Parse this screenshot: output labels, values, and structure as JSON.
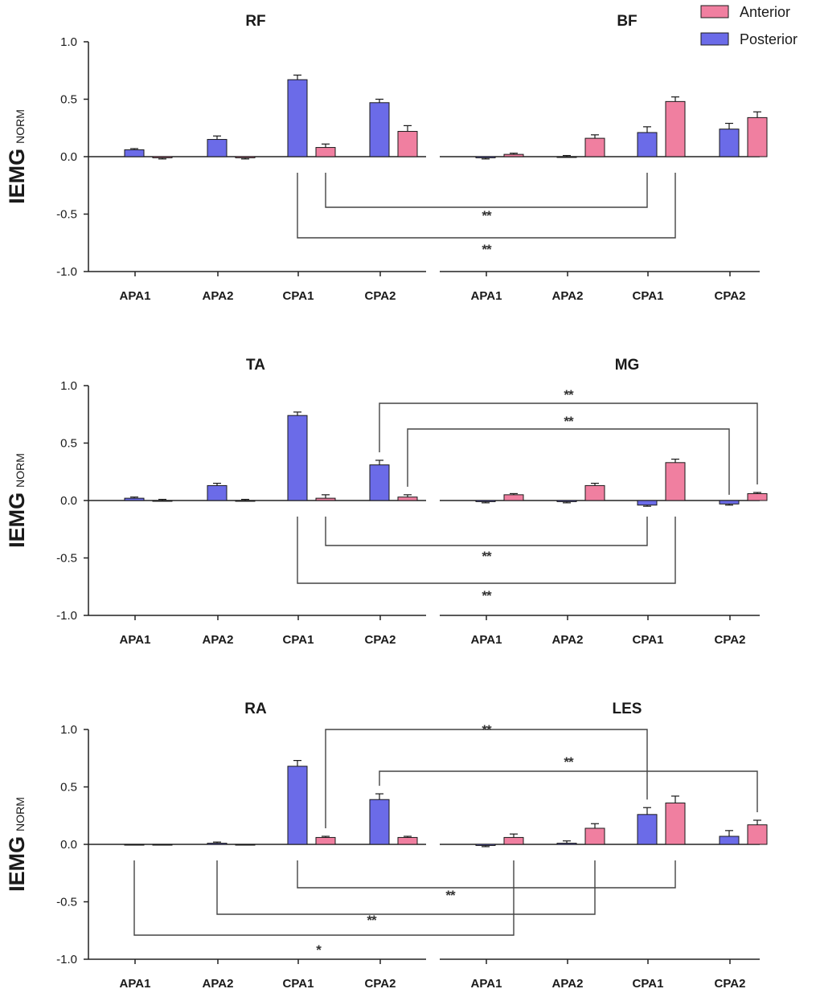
{
  "legend": [
    {
      "name": "Anterior",
      "color": "#f07fa0"
    },
    {
      "name": "Posterior",
      "color": "#6b6be8"
    }
  ],
  "colors": {
    "axis": "#222222",
    "bar_stroke": "#1a1a1a",
    "bracket": "#444444"
  },
  "chart_data": [
    {
      "type": "bar",
      "row": 1,
      "ylabel": "IEMG",
      "ylabel_sub": "NORM",
      "ylim": [
        -1.0,
        1.0
      ],
      "yticks": [
        "1.0",
        "0.5",
        "0.0",
        "-0.5",
        "-1.0"
      ],
      "panels": [
        {
          "title": "RF",
          "categories": [
            "APA1",
            "APA2",
            "CPA1",
            "CPA2"
          ],
          "series": [
            {
              "name": "Posterior",
              "values": [
                0.06,
                0.15,
                0.67,
                0.47
              ],
              "errors": [
                0.01,
                0.03,
                0.04,
                0.03
              ]
            },
            {
              "name": "Anterior",
              "values": [
                -0.01,
                -0.01,
                0.08,
                0.22
              ],
              "errors": [
                0.01,
                0.01,
                0.03,
                0.05
              ]
            }
          ]
        },
        {
          "title": "BF",
          "categories": [
            "APA1",
            "APA2",
            "CPA1",
            "CPA2"
          ],
          "series": [
            {
              "name": "Posterior",
              "values": [
                -0.01,
                0.0,
                0.21,
                0.24
              ],
              "errors": [
                0.01,
                0.01,
                0.05,
                0.05
              ]
            },
            {
              "name": "Anterior",
              "values": [
                0.02,
                0.16,
                0.48,
                0.34
              ],
              "errors": [
                0.01,
                0.03,
                0.04,
                0.05
              ]
            }
          ]
        }
      ],
      "significance": [
        {
          "label": "**",
          "from": "RF CPA1 Anterior",
          "to": "BF CPA1 Posterior"
        },
        {
          "label": "**",
          "from": "RF CPA1 Posterior",
          "to": "BF CPA1 Anterior"
        }
      ]
    },
    {
      "type": "bar",
      "row": 2,
      "ylabel": "IEMG",
      "ylabel_sub": "NORM",
      "ylim": [
        -1.0,
        1.0
      ],
      "yticks": [
        "1.0",
        "0.5",
        "0.0",
        "-0.5",
        "-1.0"
      ],
      "panels": [
        {
          "title": "TA",
          "categories": [
            "APA1",
            "APA2",
            "CPA1",
            "CPA2"
          ],
          "series": [
            {
              "name": "Posterior",
              "values": [
                0.02,
                0.13,
                0.74,
                0.31
              ],
              "errors": [
                0.01,
                0.02,
                0.03,
                0.04
              ]
            },
            {
              "name": "Anterior",
              "values": [
                0.0,
                0.0,
                0.02,
                0.03
              ],
              "errors": [
                0.01,
                0.01,
                0.03,
                0.02
              ]
            }
          ]
        },
        {
          "title": "MG",
          "categories": [
            "APA1",
            "APA2",
            "CPA1",
            "CPA2"
          ],
          "series": [
            {
              "name": "Posterior",
              "values": [
                -0.01,
                -0.01,
                -0.04,
                -0.03
              ],
              "errors": [
                0.01,
                0.01,
                0.01,
                0.01
              ]
            },
            {
              "name": "Anterior",
              "values": [
                0.05,
                0.13,
                0.33,
                0.06
              ],
              "errors": [
                0.01,
                0.02,
                0.03,
                0.01
              ]
            }
          ]
        }
      ],
      "significance": [
        {
          "label": "**",
          "from": "TA CPA2 Posterior",
          "to": "MG CPA2 Anterior"
        },
        {
          "label": "**",
          "from": "TA CPA2 Anterior",
          "to": "MG CPA2 Posterior"
        },
        {
          "label": "**",
          "from": "TA CPA1 Anterior",
          "to": "MG CPA1 Posterior"
        },
        {
          "label": "**",
          "from": "TA CPA1 Posterior",
          "to": "MG CPA1 Anterior"
        }
      ]
    },
    {
      "type": "bar",
      "row": 3,
      "ylabel": "IEMG",
      "ylabel_sub": "NORM",
      "ylim": [
        -1.0,
        1.0
      ],
      "yticks": [
        "1.0",
        "0.5",
        "0.0",
        "-0.5",
        "-1.0"
      ],
      "panels": [
        {
          "title": "RA",
          "categories": [
            "APA1",
            "APA2",
            "CPA1",
            "CPA2"
          ],
          "series": [
            {
              "name": "Posterior",
              "values": [
                0.0,
                0.01,
                0.68,
                0.39
              ],
              "errors": [
                0.0,
                0.01,
                0.05,
                0.05
              ]
            },
            {
              "name": "Anterior",
              "values": [
                0.0,
                0.0,
                0.06,
                0.06
              ],
              "errors": [
                0.0,
                0.0,
                0.01,
                0.01
              ]
            }
          ]
        },
        {
          "title": "LES",
          "categories": [
            "APA1",
            "APA2",
            "CPA1",
            "CPA2"
          ],
          "series": [
            {
              "name": "Posterior",
              "values": [
                -0.01,
                0.01,
                0.26,
                0.07
              ],
              "errors": [
                0.01,
                0.02,
                0.06,
                0.05
              ]
            },
            {
              "name": "Anterior",
              "values": [
                0.06,
                0.14,
                0.36,
                0.17
              ],
              "errors": [
                0.03,
                0.04,
                0.06,
                0.04
              ]
            }
          ]
        }
      ],
      "significance": [
        {
          "label": "**",
          "from": "RA CPA1 Anterior",
          "to": "LES CPA1 Posterior"
        },
        {
          "label": "**",
          "from": "RA CPA2 Posterior",
          "to": "LES CPA2 Anterior"
        },
        {
          "label": "**",
          "from": "RA CPA1 Posterior",
          "to": "LES CPA1 Anterior"
        },
        {
          "label": "**",
          "from": "RA APA2 Posterior",
          "to": "LES APA2 Anterior"
        },
        {
          "label": "*",
          "from": "RA APA1 Posterior",
          "to": "LES APA1 Anterior"
        }
      ]
    }
  ]
}
